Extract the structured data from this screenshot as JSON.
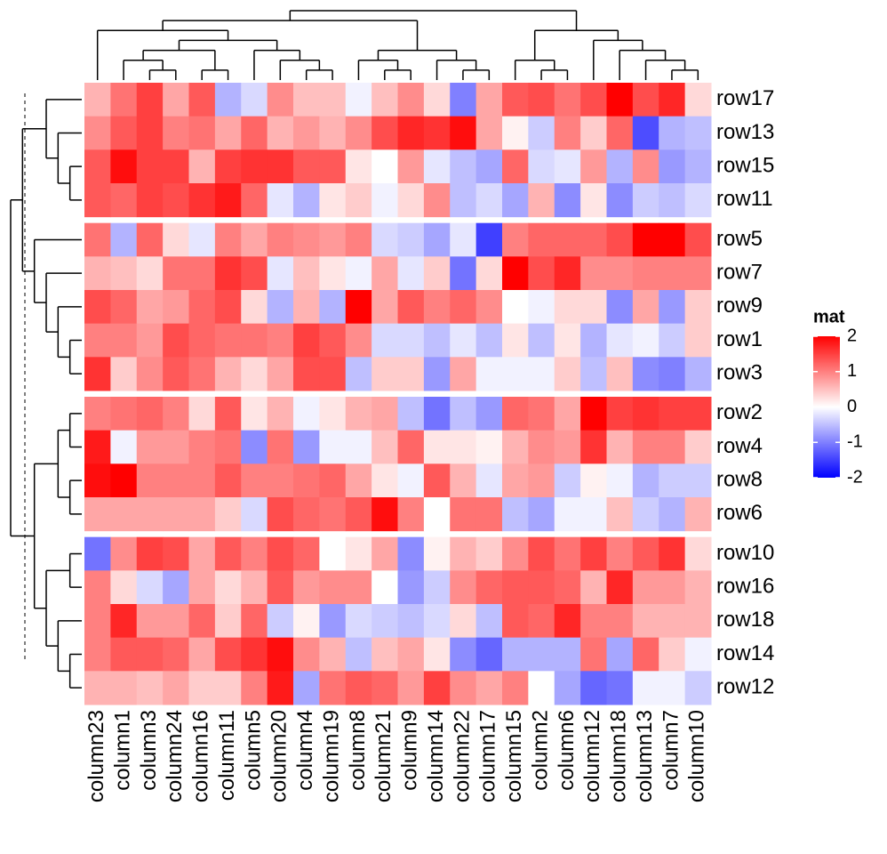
{
  "chart_data": {
    "type": "heatmap",
    "columns": [
      "column23",
      "column1",
      "column3",
      "column24",
      "column16",
      "column11",
      "column5",
      "column20",
      "column4",
      "column19",
      "column8",
      "column21",
      "column9",
      "column14",
      "column22",
      "column17",
      "column15",
      "column2",
      "column6",
      "column12",
      "column18",
      "column13",
      "column7",
      "column10"
    ],
    "rows": [
      [
        "row17",
        "row13",
        "row15",
        "row11"
      ],
      [
        "row5",
        "row7",
        "row9",
        "row1",
        "row3"
      ],
      [
        "row2",
        "row4",
        "row8",
        "row6"
      ],
      [
        "row10",
        "row16",
        "row18",
        "row14",
        "row12"
      ]
    ],
    "values": [
      [
        [
          0.6,
          1.1,
          1.5,
          0.7,
          1.3,
          -0.6,
          -0.3,
          0.9,
          0.5,
          0.5,
          -0.1,
          0.5,
          0.9,
          0.3,
          -1,
          0.7,
          1.3,
          1.4,
          1.1,
          1.4,
          2.2,
          1.4,
          1.7,
          0.3
        ],
        [
          0.9,
          1.3,
          1.5,
          1.0,
          1.1,
          0.7,
          1.2,
          0.6,
          0.8,
          0.6,
          0.9,
          1.4,
          1.7,
          1.6,
          1.9,
          0.7,
          0.1,
          -0.4,
          1.0,
          0.4,
          1.2,
          -1.4,
          -0.6,
          -0.5
        ],
        [
          1.3,
          1.9,
          1.5,
          1.5,
          0.6,
          1.5,
          1.6,
          1.6,
          1.3,
          1.3,
          0.2,
          0,
          0.8,
          -0.2,
          -0.5,
          -0.7,
          1.2,
          -0.3,
          -0.2,
          0.8,
          -0.6,
          0.9,
          -0.8,
          -0.6
        ],
        [
          1.3,
          1.2,
          1.5,
          1.4,
          1.6,
          1.8,
          1.2,
          -0.2,
          -0.6,
          0.2,
          0.4,
          -0.1,
          0.3,
          0.9,
          -0.5,
          -0.3,
          -0.7,
          0.6,
          -0.9,
          0.2,
          -0.9,
          -0.4,
          -0.5,
          -0.3
        ]
      ],
      [
        [
          1.1,
          -0.6,
          1.2,
          0.3,
          -0.2,
          1.0,
          0.7,
          1.0,
          0.9,
          0.8,
          1.0,
          -0.3,
          -0.4,
          -0.7,
          -0.2,
          -1.5,
          1.0,
          1.2,
          1.2,
          1.2,
          1.4,
          2.1,
          2.1,
          1.4
        ],
        [
          0.6,
          0.5,
          0.3,
          1.1,
          1.1,
          1.6,
          1.4,
          -0.2,
          0.5,
          0.2,
          -0.1,
          0.7,
          -0.2,
          0.4,
          -1.1,
          0.3,
          2.1,
          1.4,
          1.7,
          0.9,
          0.9,
          1.0,
          1.0,
          1.0
        ],
        [
          1.4,
          1.2,
          0.7,
          0.8,
          1.2,
          1.4,
          0.3,
          -0.6,
          0.6,
          -0.6,
          2.0,
          0.7,
          1.3,
          1.0,
          1.2,
          0.9,
          0,
          -0.1,
          0.3,
          0.3,
          -0.9,
          0.7,
          -0.8,
          0.4
        ],
        [
          1.0,
          1.0,
          0.8,
          1.4,
          1.2,
          1.1,
          1.1,
          1.0,
          1.5,
          1.3,
          0.9,
          -0.3,
          -0.3,
          -0.5,
          -0.2,
          -0.5,
          0.2,
          -0.5,
          0.2,
          -0.6,
          -0.2,
          -0.1,
          -0.4,
          0.4
        ],
        [
          1.6,
          0.4,
          0.9,
          1.3,
          1.1,
          0.6,
          0.3,
          0.7,
          1.4,
          1.4,
          -0.5,
          0.4,
          0.4,
          -0.8,
          0.7,
          -0.1,
          -0.1,
          -0.1,
          0.4,
          -0.5,
          0.5,
          -0.9,
          -1.0,
          -0.6
        ]
      ],
      [
        [
          1.0,
          1.1,
          1.2,
          1.0,
          0.3,
          1.3,
          0.2,
          0.6,
          -0.1,
          0.2,
          0.6,
          0.7,
          -0.5,
          -1.1,
          -0.5,
          -0.8,
          1.2,
          1.1,
          0.7,
          2.1,
          1.5,
          1.6,
          1.5,
          1.5
        ],
        [
          1.8,
          -0.1,
          0.8,
          0.8,
          1.0,
          1.1,
          -0.9,
          1.1,
          -0.8,
          -0.1,
          -0.1,
          0.5,
          1.2,
          0.2,
          0.2,
          0.1,
          0.6,
          0.9,
          0.8,
          1.6,
          0.6,
          1.0,
          1.0,
          0.4
        ],
        [
          1.9,
          2.2,
          1.0,
          1.0,
          1.0,
          1.3,
          1.0,
          1.0,
          1.1,
          1.2,
          0.7,
          0.2,
          -0.1,
          1.3,
          0.6,
          -0.2,
          0.7,
          0.8,
          -0.4,
          0.1,
          -0.1,
          -0.6,
          -0.4,
          -0.4
        ],
        [
          0.7,
          0.7,
          0.7,
          0.7,
          0.7,
          0.4,
          -0.3,
          1.4,
          1.2,
          1.1,
          1.3,
          1.9,
          1.0,
          0,
          1.1,
          1.1,
          -0.5,
          -0.7,
          -0.1,
          -0.1,
          0.5,
          -0.4,
          -0.6,
          0.6
        ]
      ],
      [
        [
          -1.1,
          0.9,
          1.5,
          1.4,
          0.7,
          1.3,
          1.0,
          1.4,
          1.2,
          0,
          0.2,
          0.7,
          -0.9,
          0.1,
          0.6,
          0.4,
          0.9,
          1.4,
          1.1,
          1.5,
          1.0,
          1.3,
          1.6,
          0.3
        ],
        [
          1.0,
          0.3,
          -0.3,
          -0.7,
          0.7,
          0.3,
          0.6,
          1.3,
          0.8,
          0.9,
          0.9,
          0,
          -0.8,
          -0.4,
          0.9,
          1.2,
          1.3,
          1.3,
          1.2,
          0.6,
          1.7,
          0.8,
          0.8,
          0.6
        ],
        [
          1.0,
          1.7,
          0.8,
          0.8,
          1.2,
          0.4,
          1.2,
          -0.4,
          0.1,
          -0.8,
          -0.3,
          -0.4,
          -0.5,
          -0.3,
          0.3,
          -0.5,
          1.3,
          1.2,
          1.7,
          1.0,
          1.0,
          0.6,
          0.6,
          0.6
        ],
        [
          1.0,
          1.3,
          1.3,
          1.2,
          0.7,
          1.4,
          1.6,
          1.9,
          0.9,
          0.6,
          -0.5,
          0.5,
          0.7,
          0.2,
          -0.9,
          -1.2,
          -0.6,
          -0.6,
          -0.6,
          1.1,
          -0.7,
          1.2,
          0.4,
          -0.1
        ],
        [
          0.6,
          0.6,
          0.5,
          0.7,
          0.4,
          0.4,
          1.0,
          1.8,
          -0.7,
          1.1,
          1.3,
          1.2,
          0.8,
          1.5,
          0.9,
          0.7,
          1.0,
          0,
          -0.7,
          -1.2,
          -1.1,
          -0.1,
          -0.1,
          -0.4
        ]
      ]
    ],
    "legend_title": "mat",
    "clim": [
      -2,
      2
    ],
    "colors": [
      "#0000ff",
      "#ffffff",
      "#ff0000"
    ],
    "legend_ticks": [
      -2,
      -1,
      0,
      1,
      2
    ]
  }
}
